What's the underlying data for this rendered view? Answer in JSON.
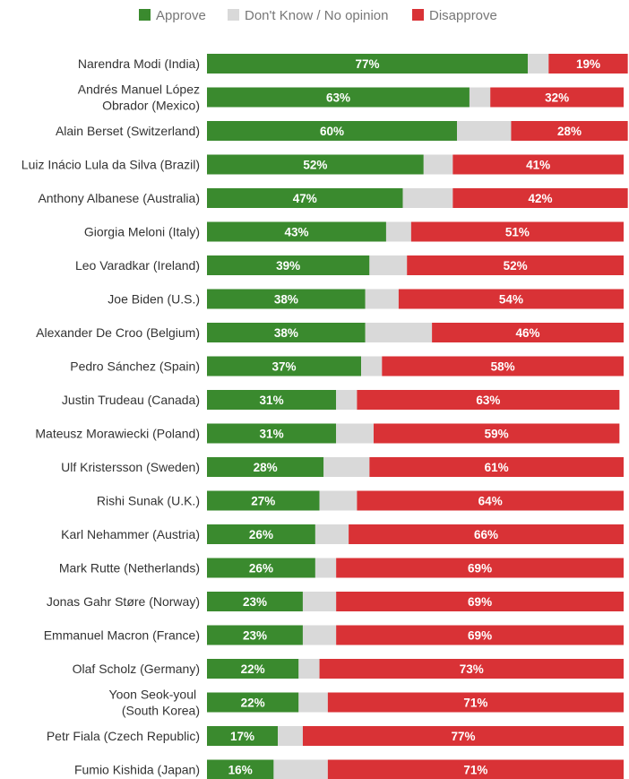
{
  "chart_data": {
    "type": "bar",
    "orientation": "horizontal",
    "stacked": true,
    "legend_position": "top",
    "grid": false,
    "xlim": [
      0,
      100
    ],
    "categories": [
      [
        "Narendra Modi (India)"
      ],
      [
        "Andrés Manuel López",
        "Obrador (Mexico)"
      ],
      [
        "Alain Berset (Switzerland)"
      ],
      [
        "Luiz Inácio Lula da Silva (Brazil)"
      ],
      [
        "Anthony Albanese (Australia)"
      ],
      [
        "Giorgia Meloni (Italy)"
      ],
      [
        "Leo Varadkar (Ireland)"
      ],
      [
        "Joe Biden (U.S.)"
      ],
      [
        "Alexander De Croo (Belgium)"
      ],
      [
        "Pedro Sánchez (Spain)"
      ],
      [
        "Justin Trudeau (Canada)"
      ],
      [
        "Mateusz Morawiecki (Poland)"
      ],
      [
        "Ulf Kristersson (Sweden)"
      ],
      [
        "Rishi Sunak (U.K.)"
      ],
      [
        "Karl Nehammer (Austria)"
      ],
      [
        "Mark Rutte (Netherlands)"
      ],
      [
        "Jonas Gahr Støre (Norway)"
      ],
      [
        "Emmanuel Macron (France)"
      ],
      [
        "Olaf Scholz (Germany)"
      ],
      [
        "Yoon Seok-youl ",
        "(South Korea)"
      ],
      [
        "Petr Fiala (Czech Republic)"
      ],
      [
        "Fumio Kishida (Japan)"
      ]
    ],
    "series": [
      {
        "name": "Approve",
        "color": "#3a8a2e",
        "labeled": true,
        "values": [
          77,
          63,
          60,
          52,
          47,
          43,
          39,
          38,
          38,
          37,
          31,
          31,
          28,
          27,
          26,
          26,
          23,
          23,
          22,
          22,
          17,
          16
        ]
      },
      {
        "name": "Don't Know / No opinion",
        "color": "#d9d9d9",
        "labeled": false,
        "values": [
          5,
          5,
          13,
          7,
          12,
          6,
          9,
          8,
          16,
          5,
          5,
          9,
          11,
          9,
          8,
          5,
          8,
          8,
          5,
          7,
          6,
          13
        ]
      },
      {
        "name": "Disapprove",
        "color": "#d93236",
        "labeled": true,
        "values": [
          19,
          32,
          28,
          41,
          42,
          51,
          52,
          54,
          46,
          58,
          63,
          59,
          61,
          64,
          66,
          69,
          69,
          69,
          73,
          71,
          77,
          71
        ]
      }
    ],
    "value_suffix": "%"
  }
}
